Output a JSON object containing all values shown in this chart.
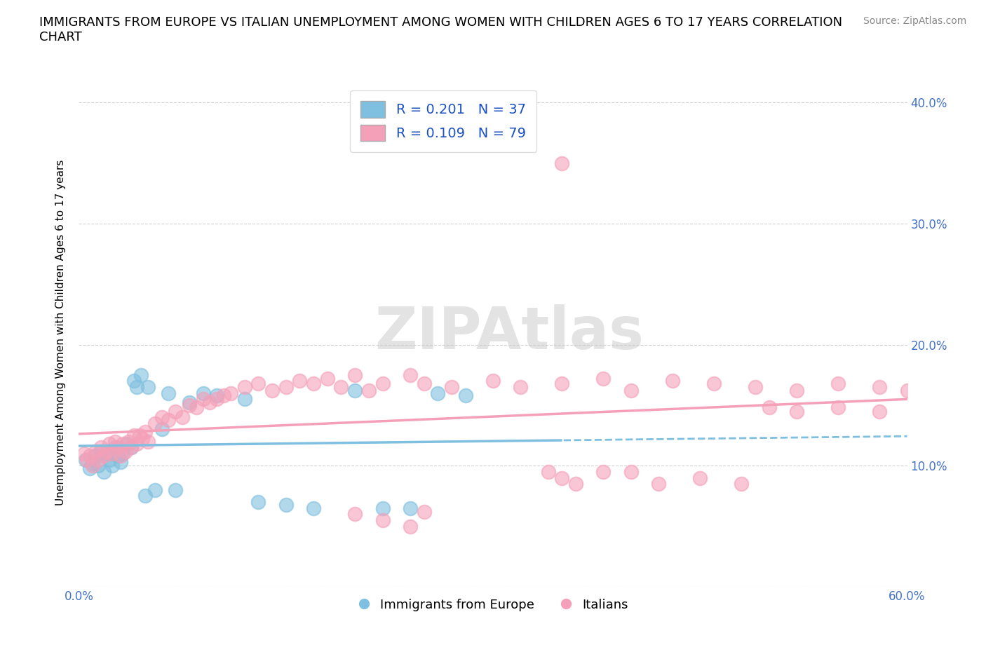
{
  "title": "IMMIGRANTS FROM EUROPE VS ITALIAN UNEMPLOYMENT AMONG WOMEN WITH CHILDREN AGES 6 TO 17 YEARS CORRELATION\nCHART",
  "source": "Source: ZipAtlas.com",
  "ylabel": "Unemployment Among Women with Children Ages 6 to 17 years",
  "xlim": [
    0.0,
    0.6
  ],
  "ylim": [
    0.0,
    0.42
  ],
  "xticks": [
    0.0,
    0.1,
    0.2,
    0.3,
    0.4,
    0.5,
    0.6
  ],
  "yticks": [
    0.0,
    0.1,
    0.2,
    0.3,
    0.4
  ],
  "xticklabels": [
    "0.0%",
    "",
    "",
    "",
    "",
    "",
    "60.0%"
  ],
  "yticklabels_right": [
    "",
    "10.0%",
    "20.0%",
    "30.0%",
    "40.0%"
  ],
  "watermark": "ZIPAtlas",
  "legend_labels": [
    "Immigrants from Europe",
    "Italians"
  ],
  "blue_color": "#7fbfdf",
  "pink_color": "#f4a0b8",
  "R_blue": 0.201,
  "N_blue": 37,
  "R_pink": 0.109,
  "N_pink": 79,
  "blue_scatter_x": [
    0.005,
    0.008,
    0.01,
    0.012,
    0.014,
    0.016,
    0.018,
    0.02,
    0.022,
    0.024,
    0.026,
    0.028,
    0.03,
    0.032,
    0.035,
    0.038,
    0.04,
    0.042,
    0.045,
    0.048,
    0.05,
    0.055,
    0.06,
    0.065,
    0.07,
    0.08,
    0.09,
    0.1,
    0.12,
    0.13,
    0.15,
    0.17,
    0.2,
    0.22,
    0.24,
    0.26,
    0.28
  ],
  "blue_scatter_y": [
    0.105,
    0.098,
    0.102,
    0.108,
    0.1,
    0.112,
    0.095,
    0.11,
    0.105,
    0.1,
    0.115,
    0.108,
    0.103,
    0.11,
    0.118,
    0.115,
    0.17,
    0.165,
    0.175,
    0.075,
    0.165,
    0.08,
    0.13,
    0.16,
    0.08,
    0.152,
    0.16,
    0.158,
    0.155,
    0.07,
    0.068,
    0.065,
    0.162,
    0.065,
    0.065,
    0.16,
    0.158
  ],
  "pink_scatter_x": [
    0.004,
    0.006,
    0.008,
    0.01,
    0.012,
    0.014,
    0.016,
    0.018,
    0.02,
    0.022,
    0.024,
    0.026,
    0.028,
    0.03,
    0.032,
    0.034,
    0.036,
    0.038,
    0.04,
    0.042,
    0.044,
    0.046,
    0.048,
    0.05,
    0.055,
    0.06,
    0.065,
    0.07,
    0.075,
    0.08,
    0.085,
    0.09,
    0.095,
    0.1,
    0.105,
    0.11,
    0.12,
    0.13,
    0.14,
    0.15,
    0.16,
    0.17,
    0.18,
    0.19,
    0.2,
    0.21,
    0.22,
    0.24,
    0.25,
    0.27,
    0.3,
    0.32,
    0.35,
    0.38,
    0.4,
    0.43,
    0.46,
    0.49,
    0.52,
    0.55,
    0.58,
    0.6,
    0.35,
    0.2,
    0.22,
    0.24,
    0.25,
    0.34,
    0.35,
    0.36,
    0.38,
    0.4,
    0.42,
    0.45,
    0.48,
    0.5,
    0.52,
    0.55,
    0.58
  ],
  "pink_scatter_y": [
    0.11,
    0.105,
    0.108,
    0.1,
    0.112,
    0.105,
    0.115,
    0.108,
    0.112,
    0.118,
    0.11,
    0.12,
    0.115,
    0.108,
    0.118,
    0.112,
    0.12,
    0.115,
    0.125,
    0.118,
    0.125,
    0.122,
    0.128,
    0.12,
    0.135,
    0.14,
    0.138,
    0.145,
    0.14,
    0.15,
    0.148,
    0.155,
    0.152,
    0.155,
    0.158,
    0.16,
    0.165,
    0.168,
    0.162,
    0.165,
    0.17,
    0.168,
    0.172,
    0.165,
    0.175,
    0.162,
    0.168,
    0.175,
    0.168,
    0.165,
    0.17,
    0.165,
    0.168,
    0.172,
    0.162,
    0.17,
    0.168,
    0.165,
    0.162,
    0.168,
    0.165,
    0.162,
    0.35,
    0.06,
    0.055,
    0.05,
    0.062,
    0.095,
    0.09,
    0.085,
    0.095,
    0.095,
    0.085,
    0.09,
    0.085,
    0.148,
    0.145,
    0.148,
    0.145
  ]
}
